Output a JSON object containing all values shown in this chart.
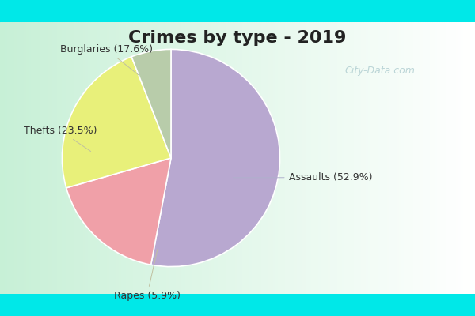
{
  "title": "Crimes by type - 2019",
  "slices": [
    {
      "label": "Assaults",
      "pct": 52.9,
      "color": "#b8a8d0"
    },
    {
      "label": "Burglaries",
      "pct": 17.6,
      "color": "#f0a0a8"
    },
    {
      "label": "Thefts",
      "pct": 23.5,
      "color": "#e8f07a"
    },
    {
      "label": "Rapes",
      "pct": 5.9,
      "color": "#b8ccaa"
    }
  ],
  "title_fontsize": 16,
  "label_fontsize": 9,
  "cyan_color": "#00e8e8",
  "watermark": "City-Data.com",
  "startangle": 90
}
